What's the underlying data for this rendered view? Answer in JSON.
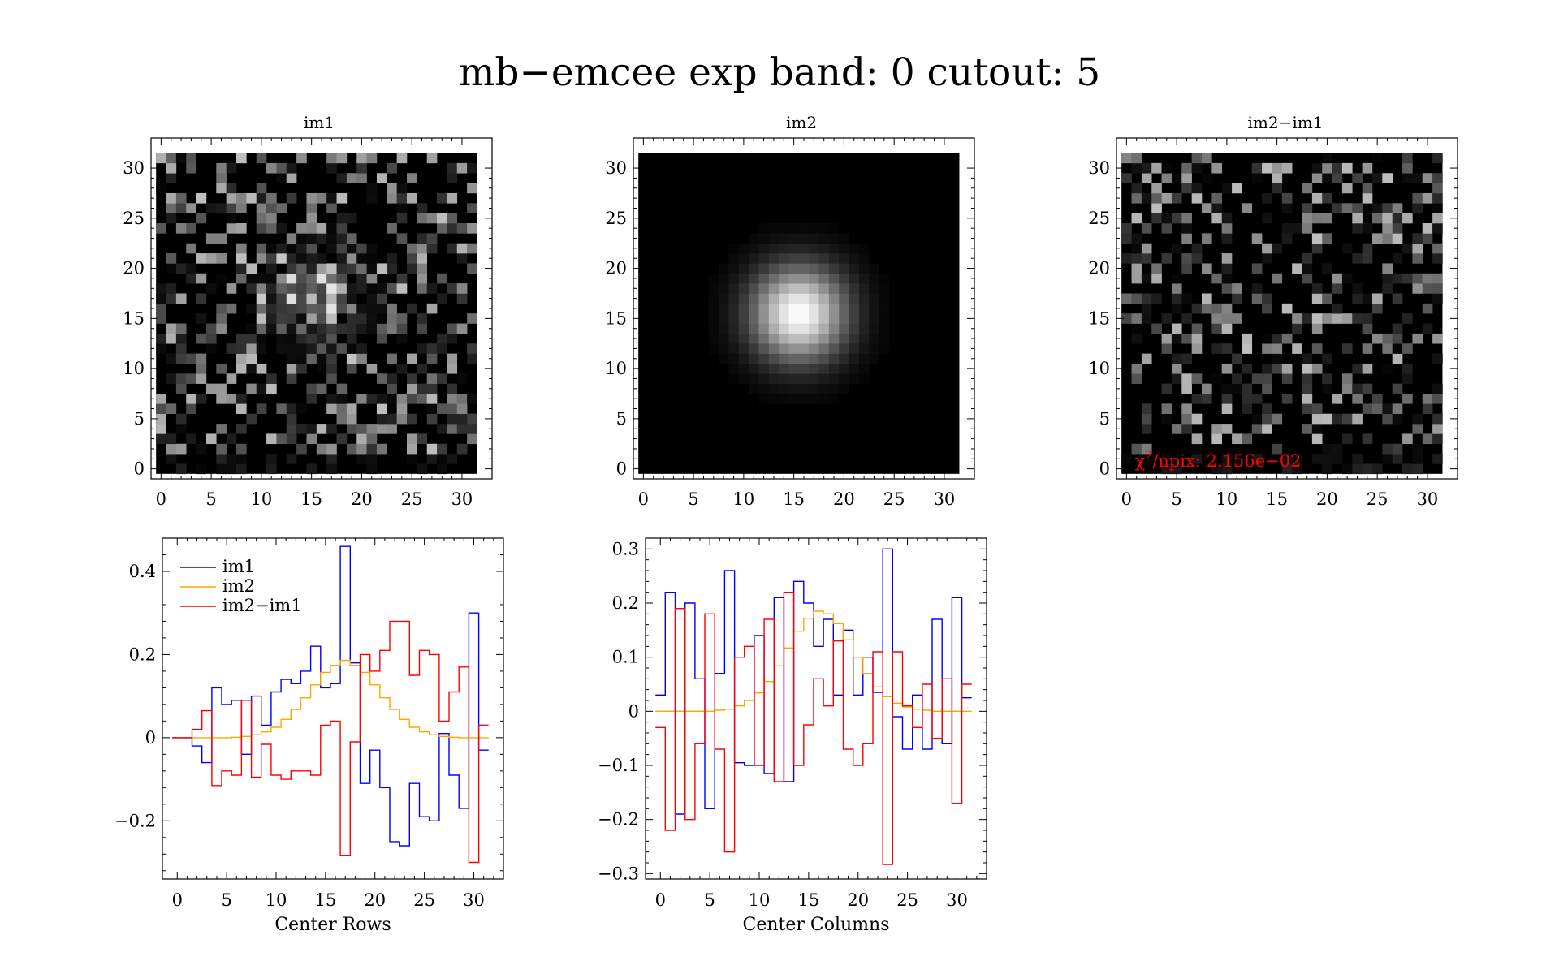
{
  "title": "mb−emcee exp band: 0 cutout: 5",
  "chart_data": [
    {
      "type": "heatmap",
      "title": "im1",
      "grid_size": 32,
      "xlim": [
        -1,
        33
      ],
      "ylim": [
        -1,
        33
      ],
      "xticks": [
        "0",
        "5",
        "10",
        "15",
        "20",
        "25",
        "30"
      ],
      "yticks": [
        "0",
        "5",
        "10",
        "15",
        "20",
        "25",
        "30"
      ],
      "description_note": "",
      "noise_seed": 11,
      "blob": {
        "center": [
          15.5,
          17
        ],
        "amplitude": 0.55
      }
    },
    {
      "type": "heatmap",
      "title": "im2",
      "grid_size": 32,
      "xlim": [
        -1,
        33
      ],
      "ylim": [
        -1,
        33
      ],
      "xticks": [
        "0",
        "5",
        "10",
        "15",
        "20",
        "25",
        "30"
      ],
      "yticks": [
        "0",
        "5",
        "10",
        "15",
        "20",
        "25",
        "30"
      ],
      "gaussian": {
        "center": [
          16,
          16
        ],
        "sigma": 3.3
      }
    },
    {
      "type": "heatmap",
      "title": "im2−im1",
      "grid_size": 32,
      "xlim": [
        -1,
        33
      ],
      "ylim": [
        -1,
        33
      ],
      "xticks": [
        "0",
        "5",
        "10",
        "15",
        "20",
        "25",
        "30"
      ],
      "yticks": [
        "0",
        "5",
        "10",
        "15",
        "20",
        "25",
        "30"
      ],
      "noise_seed": 47,
      "annotation": {
        "prefix": "χ",
        "sup": "2",
        "text": "/npix: 2.156e−02",
        "color": "#ff0000"
      }
    },
    {
      "type": "line",
      "drawstyle": "steps-mid",
      "xlabel": "Center Rows",
      "xlim": [
        -1.5,
        33
      ],
      "ylim": [
        -0.34,
        0.48
      ],
      "xticks": [
        0,
        5,
        10,
        15,
        20,
        25,
        30
      ],
      "yticks": [
        -0.2,
        0,
        0.2,
        0.4
      ],
      "ytick_labels": [
        "−0.2",
        "0",
        "0.2",
        "0.4"
      ],
      "legend": {
        "placement": "top-left",
        "entries": [
          "im1",
          "im2",
          "im2−im1"
        ]
      },
      "x": [
        0,
        1,
        2,
        3,
        4,
        5,
        6,
        7,
        8,
        9,
        10,
        11,
        12,
        13,
        14,
        15,
        16,
        17,
        18,
        19,
        20,
        21,
        22,
        23,
        24,
        25,
        26,
        27,
        28,
        29,
        30,
        31
      ],
      "series": [
        {
          "name": "im1",
          "color": "#0000ff",
          "values": [
            0,
            0,
            -0.02,
            -0.06,
            0.12,
            0.08,
            0.09,
            -0.04,
            0.1,
            0.03,
            0.11,
            0.14,
            0.13,
            0.16,
            0.22,
            0.12,
            0.13,
            0.46,
            0.18,
            -0.11,
            -0.03,
            -0.12,
            -0.25,
            -0.26,
            -0.11,
            -0.19,
            -0.2,
            0.01,
            -0.09,
            -0.17,
            0.3,
            -0.03
          ]
        },
        {
          "name": "im2",
          "color": "#ffa500",
          "values": [
            0,
            0,
            0,
            0,
            0,
            0,
            0.001,
            0.003,
            0.007,
            0.014,
            0.025,
            0.044,
            0.068,
            0.096,
            0.127,
            0.157,
            0.174,
            0.186,
            0.174,
            0.157,
            0.127,
            0.096,
            0.068,
            0.044,
            0.025,
            0.014,
            0.007,
            0.003,
            0.001,
            0,
            0,
            0
          ]
        },
        {
          "name": "im2−im1",
          "color": "#ff0000",
          "values": [
            0,
            0,
            0.02,
            0.065,
            -0.115,
            -0.08,
            -0.09,
            0.09,
            -0.095,
            -0.016,
            -0.09,
            -0.1,
            -0.08,
            -0.08,
            -0.09,
            0.03,
            0.04,
            -0.284,
            -0.01,
            0.2,
            0.16,
            0.21,
            0.28,
            0.28,
            0.15,
            0.21,
            0.2,
            0.04,
            0.11,
            0.17,
            -0.3,
            0.03
          ]
        }
      ]
    },
    {
      "type": "line",
      "drawstyle": "steps-mid",
      "xlabel": "Center Columns",
      "xlim": [
        -1.5,
        33
      ],
      "ylim": [
        -0.31,
        0.32
      ],
      "xticks": [
        0,
        5,
        10,
        15,
        20,
        25,
        30
      ],
      "yticks": [
        -0.3,
        -0.2,
        -0.1,
        0,
        0.1,
        0.2,
        0.3
      ],
      "ytick_labels": [
        "−0.3",
        "−0.2",
        "−0.1",
        "0",
        "0.1",
        "0.2",
        "0.3"
      ],
      "x": [
        0,
        1,
        2,
        3,
        4,
        5,
        6,
        7,
        8,
        9,
        10,
        11,
        12,
        13,
        14,
        15,
        16,
        17,
        18,
        19,
        20,
        21,
        22,
        23,
        24,
        25,
        26,
        27,
        28,
        29,
        30,
        31
      ],
      "series": [
        {
          "name": "im1",
          "color": "#0000ff",
          "values": [
            0.03,
            0.22,
            -0.19,
            0.2,
            0.06,
            -0.18,
            0.07,
            0.26,
            -0.095,
            -0.1,
            0.14,
            -0.115,
            0.21,
            -0.13,
            0.24,
            0.2,
            0.12,
            0.17,
            0.03,
            0.15,
            0.03,
            0.1,
            0.035,
            0.3,
            -0.01,
            -0.07,
            0.03,
            -0.07,
            0.17,
            -0.06,
            0.21,
            0.025
          ]
        },
        {
          "name": "im2",
          "color": "#ffa500",
          "values": [
            0,
            0,
            0,
            0,
            0,
            0,
            0.002,
            0.004,
            0.01,
            0.02,
            0.034,
            0.055,
            0.084,
            0.117,
            0.148,
            0.172,
            0.185,
            0.18,
            0.162,
            0.132,
            0.1,
            0.07,
            0.045,
            0.027,
            0.015,
            0.008,
            0.004,
            0.002,
            0,
            0,
            0,
            0
          ]
        },
        {
          "name": "im2−im1",
          "color": "#ff0000",
          "values": [
            -0.03,
            -0.22,
            0.19,
            -0.2,
            -0.06,
            0.18,
            -0.07,
            -0.26,
            0.1,
            0.12,
            -0.1,
            0.17,
            -0.13,
            0.22,
            -0.1,
            -0.025,
            0.06,
            0.01,
            0.13,
            -0.07,
            -0.1,
            -0.06,
            0.11,
            -0.283,
            0.11,
            0.01,
            -0.03,
            0.05,
            -0.05,
            0.06,
            -0.17,
            0.05
          ]
        }
      ]
    }
  ]
}
